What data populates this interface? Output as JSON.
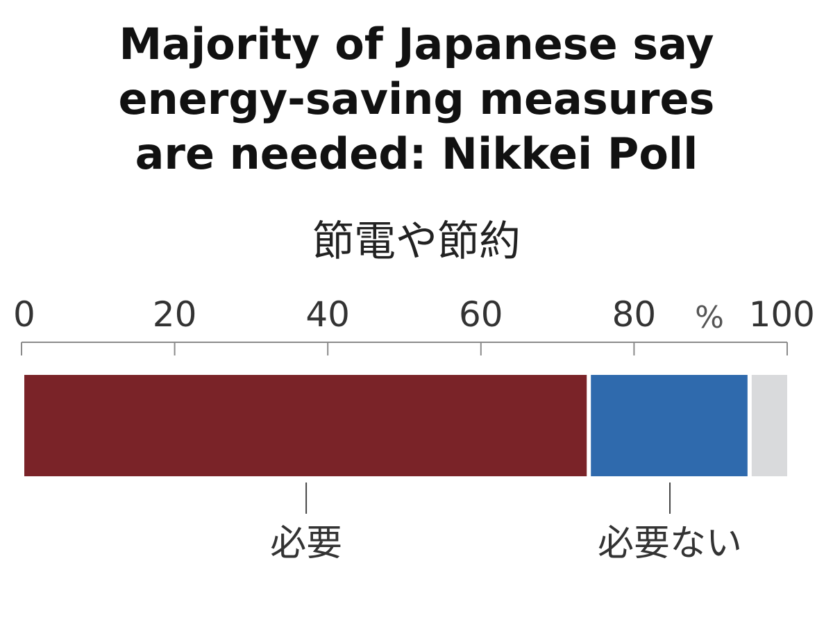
{
  "title_lines": [
    "Majority of Japanese say",
    "energy-saving measures",
    "are needed: Nikkei Poll"
  ],
  "chart_data": {
    "type": "bar",
    "orientation": "horizontal-stacked",
    "title": "Majority of Japanese say energy-saving measures are needed: Nikkei Poll",
    "subtitle": "節電や節約",
    "axis_unit": "%",
    "xlim": [
      0,
      100
    ],
    "ticks": [
      0,
      20,
      40,
      60,
      80,
      100
    ],
    "grid": false,
    "legend": "none",
    "segments": [
      {
        "name": "必要",
        "value": 74,
        "color": "#7a2328"
      },
      {
        "name": "必要ない",
        "value": 21,
        "color": "#2f6aad"
      },
      {
        "name": "",
        "value": 5,
        "color": "#d9dadc"
      }
    ]
  }
}
